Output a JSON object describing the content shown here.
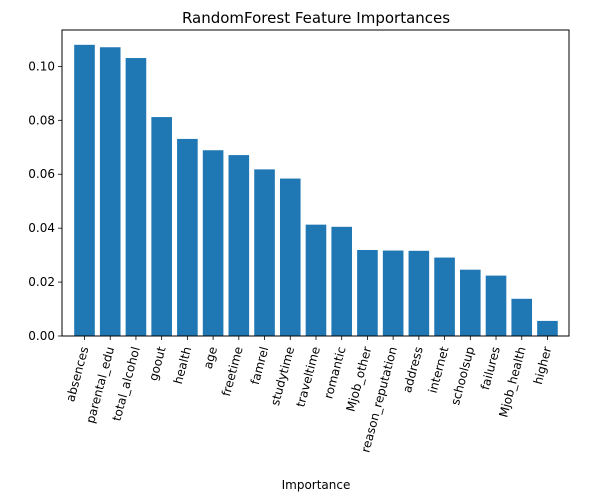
{
  "chart_data": {
    "type": "bar",
    "title": "RandomForest Feature Importances",
    "xlabel": "Importance",
    "ylabel": "",
    "ylim": [
      0,
      0.1135
    ],
    "yticks": [
      "0.00",
      "0.02",
      "0.04",
      "0.06",
      "0.08",
      "0.10"
    ],
    "ytick_values": [
      0,
      0.02,
      0.04,
      0.06,
      0.08,
      0.1
    ],
    "grid": false,
    "color": "#1f77b4",
    "categories": [
      "absences",
      "parental_edu",
      "total_alcohol",
      "goout",
      "health",
      "age",
      "freetime",
      "famrel",
      "studytime",
      "traveltime",
      "romantic",
      "Mjob_other",
      "reason_reputation",
      "address",
      "internet",
      "schoolsup",
      "failures",
      "Mjob_health",
      "higher"
    ],
    "values": [
      0.108,
      0.1071,
      0.1031,
      0.0812,
      0.0731,
      0.0689,
      0.0671,
      0.0618,
      0.0584,
      0.0413,
      0.0405,
      0.0319,
      0.0317,
      0.0316,
      0.0291,
      0.0246,
      0.0224,
      0.0138,
      0.0056
    ]
  }
}
